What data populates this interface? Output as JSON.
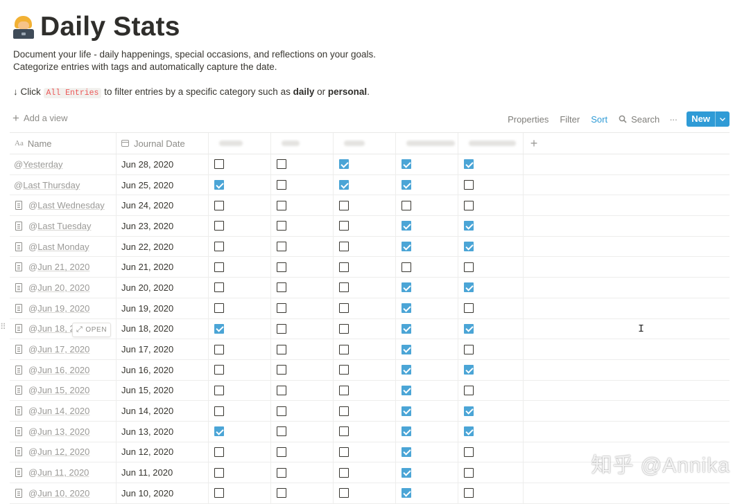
{
  "page": {
    "icon": "technologist-emoji-icon",
    "title": "Daily Stats",
    "description_line1": "Document your life - daily happenings, special occasions, and reflections on your goals.",
    "description_line2": "Categorize entries with tags and automatically capture the date.",
    "hint_prefix": "↓ Click",
    "hint_code": "All Entries",
    "hint_mid": "to filter entries by a specific category such as",
    "hint_daily": "daily",
    "hint_or": "or",
    "hint_personal": "personal",
    "hint_end": "."
  },
  "toolbar": {
    "add_view": "Add a view",
    "properties": "Properties",
    "filter": "Filter",
    "sort": "Sort",
    "search": "Search",
    "more": "···",
    "new": "New",
    "accent": "#2f9bd6"
  },
  "table": {
    "columns": {
      "name": "Name",
      "date": "Journal Date"
    },
    "open_label": "OPEN",
    "rows": [
      {
        "name": "Yesterday",
        "date": "Jun 28, 2020"
      },
      {
        "name": "Last Thursday",
        "date": "Jun 25, 2020"
      },
      {
        "name": "Last Wednesday",
        "date": "Jun 24, 2020"
      },
      {
        "name": "Last Tuesday",
        "date": "Jun 23, 2020"
      },
      {
        "name": "Last Monday",
        "date": "Jun 22, 2020"
      },
      {
        "name": "Jun 21, 2020",
        "date": "Jun 21, 2020"
      },
      {
        "name": "Jun 20, 2020",
        "date": "Jun 20, 2020"
      },
      {
        "name": "Jun 19, 2020",
        "date": "Jun 19, 2020"
      },
      {
        "name": "Jun 18, 2",
        "date": "Jun 18, 2020"
      },
      {
        "name": "Jun 17, 2020",
        "date": "Jun 17, 2020"
      },
      {
        "name": "Jun 16, 2020",
        "date": "Jun 16, 2020"
      },
      {
        "name": "Jun 15, 2020",
        "date": "Jun 15, 2020"
      },
      {
        "name": "Jun 14, 2020",
        "date": "Jun 14, 2020"
      },
      {
        "name": "Jun 13, 2020",
        "date": "Jun 13, 2020"
      },
      {
        "name": "Jun 12, 2020",
        "date": "Jun 12, 2020"
      },
      {
        "name": "Jun 11, 2020",
        "date": "Jun 11, 2020"
      },
      {
        "name": "Jun 10, 2020",
        "date": "Jun 10, 2020"
      }
    ],
    "checks": [
      [
        false,
        false,
        true,
        true,
        true
      ],
      [
        true,
        false,
        true,
        true,
        false
      ],
      [
        false,
        false,
        false,
        false,
        false
      ],
      [
        false,
        false,
        false,
        true,
        true
      ],
      [
        false,
        false,
        false,
        true,
        true
      ],
      [
        false,
        false,
        false,
        false,
        false
      ],
      [
        false,
        false,
        false,
        true,
        true
      ],
      [
        false,
        false,
        false,
        true,
        false
      ],
      [
        true,
        false,
        false,
        true,
        true
      ],
      [
        false,
        false,
        false,
        true,
        false
      ],
      [
        false,
        false,
        false,
        true,
        true
      ],
      [
        false,
        false,
        false,
        true,
        false
      ],
      [
        false,
        false,
        false,
        true,
        true
      ],
      [
        true,
        false,
        false,
        true,
        true
      ],
      [
        false,
        false,
        false,
        true,
        false
      ],
      [
        false,
        false,
        false,
        true,
        false
      ],
      [
        false,
        false,
        false,
        true,
        false
      ]
    ],
    "check_color": "#4ba5d6"
  },
  "watermark": "知乎 @Annika"
}
